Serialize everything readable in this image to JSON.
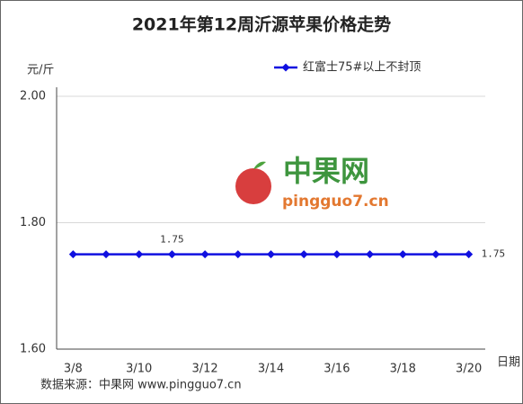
{
  "chart_data": {
    "type": "line",
    "title": "2021年第12周沂源苹果价格走势",
    "y_axis_label": "元/斤",
    "x_axis_label": "日期",
    "categories": [
      "3/8",
      null,
      "3/10",
      null,
      "3/12",
      null,
      "3/14",
      null,
      "3/16",
      null,
      "3/18",
      null,
      "3/20"
    ],
    "series": [
      {
        "name": "红富士75#以上不封顶",
        "color": "#1010e0",
        "values": [
          1.75,
          1.75,
          1.75,
          1.75,
          1.75,
          1.75,
          1.75,
          1.75,
          1.75,
          1.75,
          1.75,
          1.75,
          1.75
        ],
        "value_labels": [
          null,
          null,
          null,
          "1.75",
          null,
          null,
          null,
          null,
          null,
          null,
          null,
          null,
          "1.75"
        ]
      }
    ],
    "ylim": [
      1.6,
      2.0
    ],
    "yticks": [
      {
        "value": 1.6,
        "label": "1.60"
      },
      {
        "value": 1.8,
        "label": "1.80"
      },
      {
        "value": 2.0,
        "label": "2.00"
      }
    ],
    "grid": true,
    "legend_position": "top-right",
    "watermark": {
      "name": "中果网",
      "url": "pingguo7.cn"
    },
    "source": "数据来源：中果网 www.pingguo7.cn"
  }
}
